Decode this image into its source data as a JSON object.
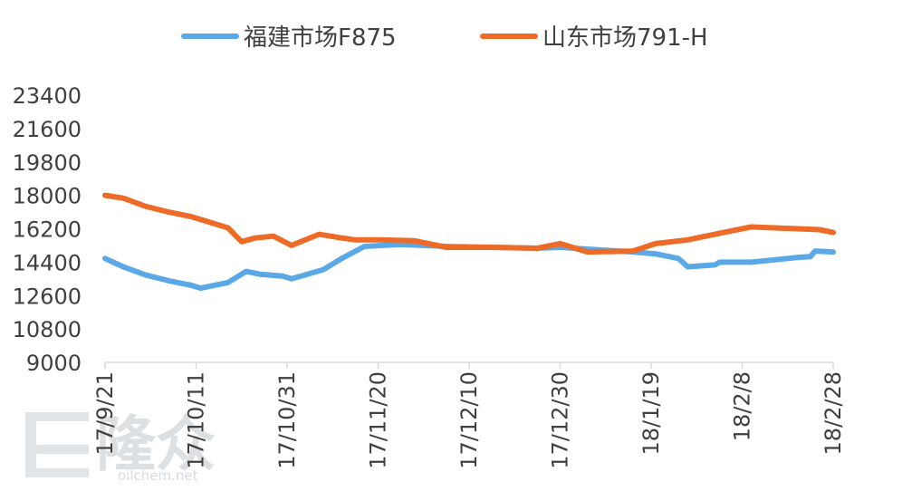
{
  "chart_data": {
    "type": "line",
    "title": "",
    "xlabel": "",
    "ylabel": "",
    "ylim": [
      9000,
      23400
    ],
    "yticks": [
      9000,
      10800,
      12600,
      14400,
      16200,
      18000,
      19800,
      21600,
      23400
    ],
    "x_tick_labels": [
      "17/9/21",
      "17/10/11",
      "17/10/31",
      "17/11/20",
      "17/12/10",
      "17/12/30",
      "18/1/19",
      "18/2/8",
      "18/2/28"
    ],
    "x_start": "2017-09-21",
    "x_end": "2018-02-28",
    "grid": false,
    "legend_position": "top",
    "series": [
      {
        "name": "福建市场F875",
        "color": "#5aa9e6",
        "points": [
          [
            "2017-09-21",
            14600
          ],
          [
            "2017-09-25",
            14150
          ],
          [
            "2017-09-30",
            13700
          ],
          [
            "2017-10-05",
            13400
          ],
          [
            "2017-10-10",
            13150
          ],
          [
            "2017-10-12",
            13000
          ],
          [
            "2017-10-18",
            13300
          ],
          [
            "2017-10-22",
            13900
          ],
          [
            "2017-10-25",
            13750
          ],
          [
            "2017-10-30",
            13650
          ],
          [
            "2017-11-01",
            13500
          ],
          [
            "2017-11-08",
            14000
          ],
          [
            "2017-11-12",
            14600
          ],
          [
            "2017-11-17",
            15250
          ],
          [
            "2017-11-25",
            15350
          ],
          [
            "2017-12-05",
            15250
          ],
          [
            "2017-12-15",
            15200
          ],
          [
            "2017-12-25",
            15150
          ],
          [
            "2017-12-30",
            15200
          ],
          [
            "2018-01-05",
            15100
          ],
          [
            "2018-01-15",
            14950
          ],
          [
            "2018-01-20",
            14850
          ],
          [
            "2018-01-25",
            14600
          ],
          [
            "2018-01-27",
            14150
          ],
          [
            "2018-02-02",
            14250
          ],
          [
            "2018-02-03",
            14400
          ],
          [
            "2018-02-10",
            14400
          ],
          [
            "2018-02-20",
            14650
          ],
          [
            "2018-02-23",
            14700
          ],
          [
            "2018-02-24",
            15000
          ],
          [
            "2018-02-28",
            14950
          ]
        ]
      },
      {
        "name": "山东市场791-H",
        "color": "#ed6b26",
        "points": [
          [
            "2017-09-21",
            18000
          ],
          [
            "2017-09-25",
            17850
          ],
          [
            "2017-09-30",
            17400
          ],
          [
            "2017-10-05",
            17100
          ],
          [
            "2017-10-10",
            16850
          ],
          [
            "2017-10-12",
            16700
          ],
          [
            "2017-10-18",
            16250
          ],
          [
            "2017-10-21",
            15500
          ],
          [
            "2017-10-24",
            15700
          ],
          [
            "2017-10-28",
            15800
          ],
          [
            "2017-11-01",
            15300
          ],
          [
            "2017-11-07",
            15900
          ],
          [
            "2017-11-12",
            15700
          ],
          [
            "2017-11-15",
            15600
          ],
          [
            "2017-11-20",
            15600
          ],
          [
            "2017-11-28",
            15550
          ],
          [
            "2017-12-05",
            15200
          ],
          [
            "2017-12-15",
            15200
          ],
          [
            "2017-12-25",
            15150
          ],
          [
            "2017-12-30",
            15400
          ],
          [
            "2018-01-05",
            14950
          ],
          [
            "2018-01-15",
            15000
          ],
          [
            "2018-01-20",
            15400
          ],
          [
            "2018-01-27",
            15600
          ],
          [
            "2018-02-03",
            15950
          ],
          [
            "2018-02-10",
            16300
          ],
          [
            "2018-02-20",
            16200
          ],
          [
            "2018-02-25",
            16150
          ],
          [
            "2018-02-28",
            16000
          ]
        ]
      }
    ]
  },
  "watermark": {
    "brand_text": "隆众",
    "url_text": "oilchem.net"
  }
}
